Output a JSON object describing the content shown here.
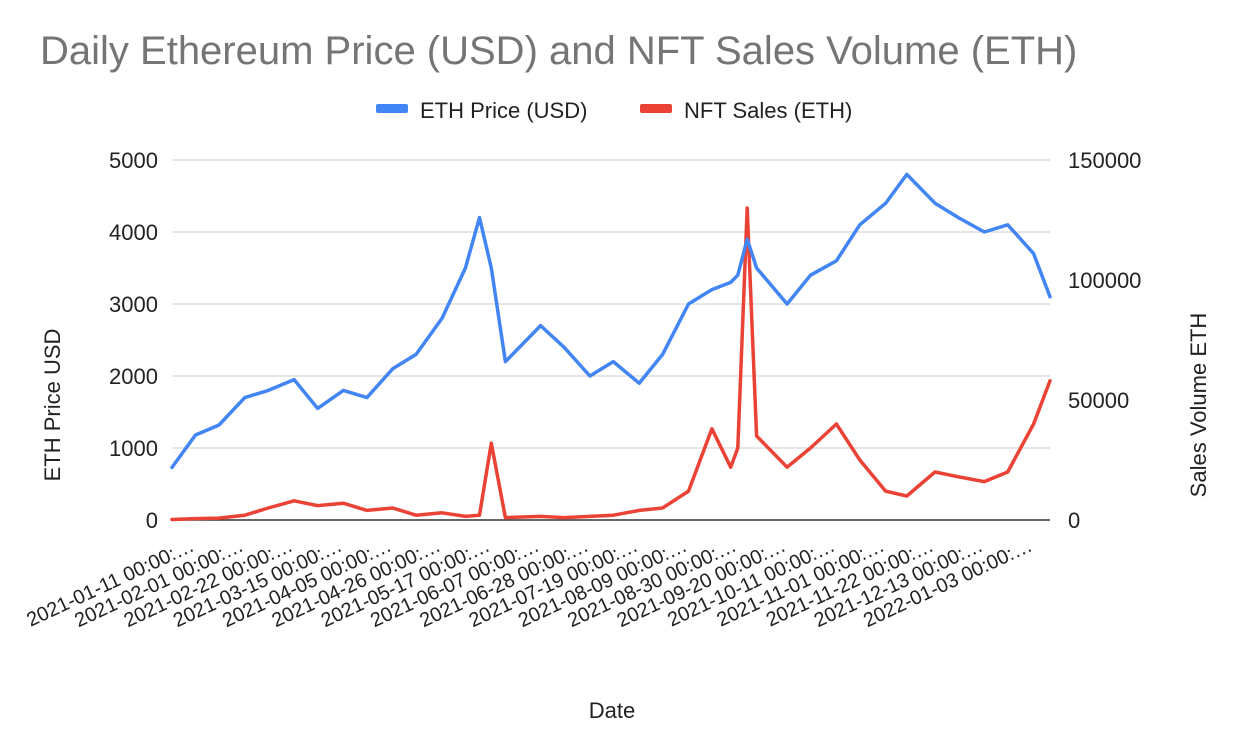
{
  "chart_data": {
    "type": "line",
    "title": "Daily Ethereum Price (USD) and NFT Sales Volume (ETH)",
    "xlabel": "Date",
    "ylabel_left": "ETH Price USD",
    "ylabel_right": "Sales Volume ETH",
    "ylim_left": [
      0,
      5000
    ],
    "ylim_right": [
      0,
      150000
    ],
    "yticks_left": [
      "5000",
      "4000",
      "3000",
      "2000",
      "1000",
      "0"
    ],
    "yticks_right": [
      "150000",
      "100000",
      "50000",
      "0"
    ],
    "grid": true,
    "legend_position": "top",
    "x_tick_labels": [
      "2021-01-11 00:00:…",
      "2021-02-01 00:00:…",
      "2021-02-22 00:00:…",
      "2021-03-15 00:00:…",
      "2021-04-05 00:00:…",
      "2021-04-26 00:00:…",
      "2021-05-17 00:00:…",
      "2021-06-07 00:00:…",
      "2021-06-28 00:00:…",
      "2021-07-19 00:00:…",
      "2021-08-09 00:00:…",
      "2021-08-30 00:00:…",
      "2021-09-20 00:00:…",
      "2021-10-11 00:00:…",
      "2021-11-01 00:00:…",
      "2021-11-22 00:00:…",
      "2021-12-13 00:00:…",
      "2022-01-03 00:00:…"
    ],
    "x_dates": [
      "2021-01-01",
      "2021-01-11",
      "2021-01-21",
      "2021-02-01",
      "2021-02-11",
      "2021-02-22",
      "2021-03-04",
      "2021-03-15",
      "2021-03-25",
      "2021-04-05",
      "2021-04-15",
      "2021-04-26",
      "2021-05-06",
      "2021-05-12",
      "2021-05-17",
      "2021-05-23",
      "2021-06-07",
      "2021-06-17",
      "2021-06-28",
      "2021-07-08",
      "2021-07-19",
      "2021-07-29",
      "2021-08-09",
      "2021-08-19",
      "2021-08-27",
      "2021-08-30",
      "2021-09-03",
      "2021-09-07",
      "2021-09-20",
      "2021-09-30",
      "2021-10-11",
      "2021-10-21",
      "2021-11-01",
      "2021-11-10",
      "2021-11-22",
      "2021-12-02",
      "2021-12-13",
      "2021-12-23",
      "2022-01-03",
      "2022-01-10"
    ],
    "series": [
      {
        "name": "ETH Price (USD)",
        "axis": "left",
        "color": "#4285f4",
        "values": [
          730,
          1180,
          1320,
          1700,
          1800,
          1950,
          1550,
          1800,
          1700,
          2100,
          2300,
          2800,
          3500,
          4200,
          3500,
          2200,
          2700,
          2400,
          2000,
          2200,
          1900,
          2300,
          3000,
          3200,
          3300,
          3400,
          3900,
          3500,
          3000,
          3400,
          3600,
          4100,
          4400,
          4800,
          4400,
          4200,
          4000,
          4100,
          3700,
          3100
        ]
      },
      {
        "name": "NFT Sales (ETH)",
        "axis": "right",
        "color": "#ea4335",
        "values": [
          200,
          600,
          800,
          2000,
          5000,
          8000,
          6000,
          7000,
          4000,
          5000,
          2000,
          3000,
          1500,
          2000,
          32000,
          1000,
          1500,
          1000,
          1500,
          2000,
          4000,
          5000,
          12000,
          38000,
          22000,
          30000,
          130000,
          35000,
          22000,
          30000,
          40000,
          25000,
          12000,
          10000,
          20000,
          18000,
          16000,
          20000,
          40000,
          58000
        ]
      }
    ]
  }
}
